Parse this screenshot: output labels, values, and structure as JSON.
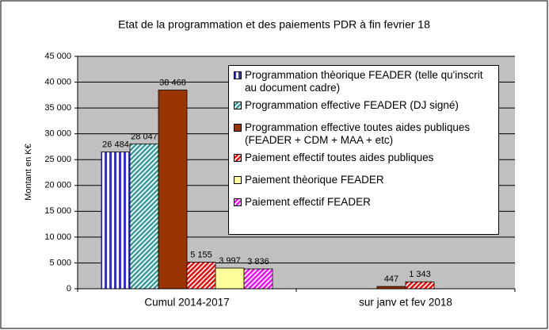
{
  "chart_data": {
    "type": "bar",
    "title": "Etat de la programmation et des paiements PDR à fin fevrier 18",
    "y_label": "Montant en K€",
    "categories": [
      "Cumul 2014-2017",
      "sur janv et fev 2018"
    ],
    "series": [
      {
        "name": "Programmation thèorique FEADER (telle qu'inscrit au document cadre)",
        "color": "#3333cc",
        "pattern": "vertical",
        "values": [
          26484,
          null
        ],
        "value_labels": [
          "26 484",
          null
        ]
      },
      {
        "name": "Programmation effective FEADER (DJ signé)",
        "color": "#339999",
        "pattern": "diagonal",
        "values": [
          28047,
          null
        ],
        "value_labels": [
          "28 047",
          null
        ]
      },
      {
        "name": "Programmation effective toutes aides publiques (FEADER + CDM + MAA + etc)",
        "color": "#993300",
        "pattern": "solid",
        "values": [
          38468,
          447
        ],
        "value_labels": [
          "38 468",
          "447"
        ]
      },
      {
        "name": "Paiement effectif toutes aides publiques",
        "color": "#ff0000",
        "pattern": "diagonal",
        "values": [
          5155,
          1343
        ],
        "value_labels": [
          "5 155",
          "1 343"
        ]
      },
      {
        "name": "Paiement thèorique FEADER",
        "color": "#ffff99",
        "pattern": "solid",
        "values": [
          3997,
          null
        ],
        "value_labels": [
          "3 997",
          null
        ]
      },
      {
        "name": "Paiement effectif FEADER",
        "color": "#ff00ff",
        "pattern": "diagonal",
        "values": [
          3836,
          null
        ],
        "value_labels": [
          "3 836",
          null
        ]
      }
    ],
    "ylim": [
      0,
      45000
    ],
    "yticks": [
      0,
      {
        "value": 5000,
        "label": "5 000"
      },
      {
        "value": 10000,
        "label": "10 000"
      },
      {
        "value": 15000,
        "label": "15 000"
      },
      {
        "value": 20000,
        "label": "20 000"
      },
      {
        "value": 25000,
        "label": "25 000"
      },
      {
        "value": 30000,
        "label": "30 000"
      },
      {
        "value": 35000,
        "label": "35 000"
      },
      {
        "value": 40000,
        "label": "40 000"
      },
      {
        "value": 45000,
        "label": "45 000"
      }
    ],
    "grid": true,
    "legend": "upper right"
  }
}
